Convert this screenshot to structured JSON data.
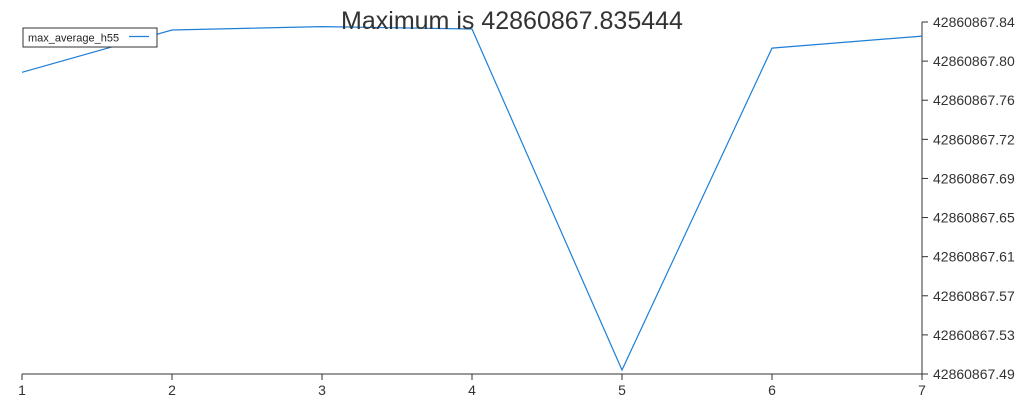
{
  "chart_data": {
    "type": "line",
    "title": "Maximum is 42860867.835444",
    "x": [
      1,
      2,
      3,
      4,
      5,
      6,
      7
    ],
    "series": [
      {
        "name": "max_average_h55",
        "values": [
          42860867.79,
          42860867.832,
          42860867.8354,
          42860867.833,
          42860867.494,
          42860867.814,
          42860867.826
        ]
      }
    ],
    "xlim": [
      1,
      7
    ],
    "ylim": [
      42860867.49,
      42860867.84
    ],
    "x_ticks": [
      "1",
      "2",
      "3",
      "4",
      "5",
      "6",
      "7"
    ],
    "y_ticks": [
      "42860867.49",
      "42860867.53",
      "42860867.57",
      "42860867.61",
      "42860867.65",
      "42860867.69",
      "42860867.72",
      "42860867.76",
      "42860867.80",
      "42860867.84"
    ],
    "y_axis_side": "right",
    "grid": false,
    "legend_position": "top-left",
    "line_color": "#1f7fd6"
  }
}
